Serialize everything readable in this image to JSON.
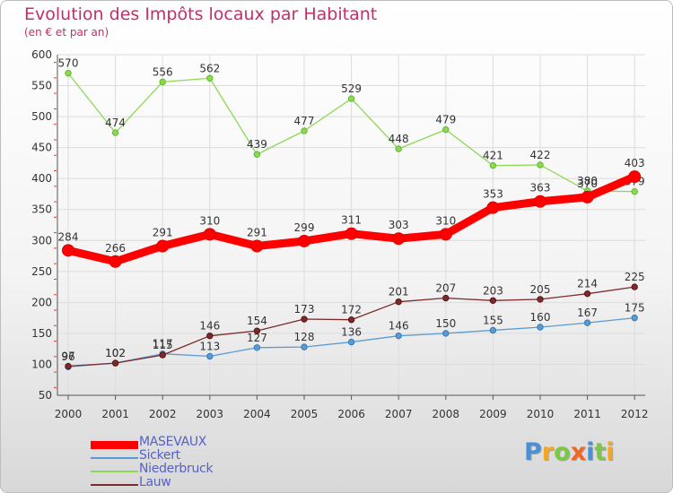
{
  "chart_data": {
    "type": "line",
    "title": "Evolution des Impôts locaux par Habitant",
    "subtitle": "(en € et par an)",
    "xlabel": "",
    "ylabel": "",
    "ylim": [
      50,
      600
    ],
    "yticks": [
      50,
      100,
      150,
      200,
      250,
      300,
      350,
      400,
      450,
      500,
      550,
      600
    ],
    "x": [
      "2000",
      "2001",
      "2002",
      "2003",
      "2004",
      "2005",
      "2006",
      "2007",
      "2008",
      "2009",
      "2010",
      "2011",
      "2012"
    ],
    "grid": true,
    "series": [
      {
        "name": "MASEVAUX",
        "color": "#ff0000",
        "dark": "#e00000",
        "values": [
          284,
          266,
          291,
          310,
          291,
          299,
          311,
          303,
          310,
          353,
          363,
          370,
          403
        ]
      },
      {
        "name": "Sickert",
        "color": "#5b9bd5",
        "dark": "#3a78b5",
        "values": [
          96,
          102,
          117,
          113,
          127,
          128,
          136,
          146,
          150,
          155,
          160,
          167,
          175
        ]
      },
      {
        "name": "Niederbruck",
        "color": "#8ed856",
        "dark": "#5fb82a",
        "values": [
          570,
          474,
          556,
          562,
          439,
          477,
          529,
          448,
          479,
          421,
          422,
          380,
          379
        ]
      },
      {
        "name": "Lauw",
        "color": "#7a2b2b",
        "dark": "#5a1414",
        "values": [
          97,
          102,
          115,
          146,
          154,
          173,
          172,
          201,
          207,
          203,
          205,
          214,
          225
        ]
      }
    ]
  },
  "logo": {
    "text": "Proxiti",
    "colors": [
      "#4a90d9",
      "#f5a623",
      "#7ac943",
      "#f26522",
      "#4a90d9",
      "#7ac943",
      "#f5a623"
    ]
  }
}
